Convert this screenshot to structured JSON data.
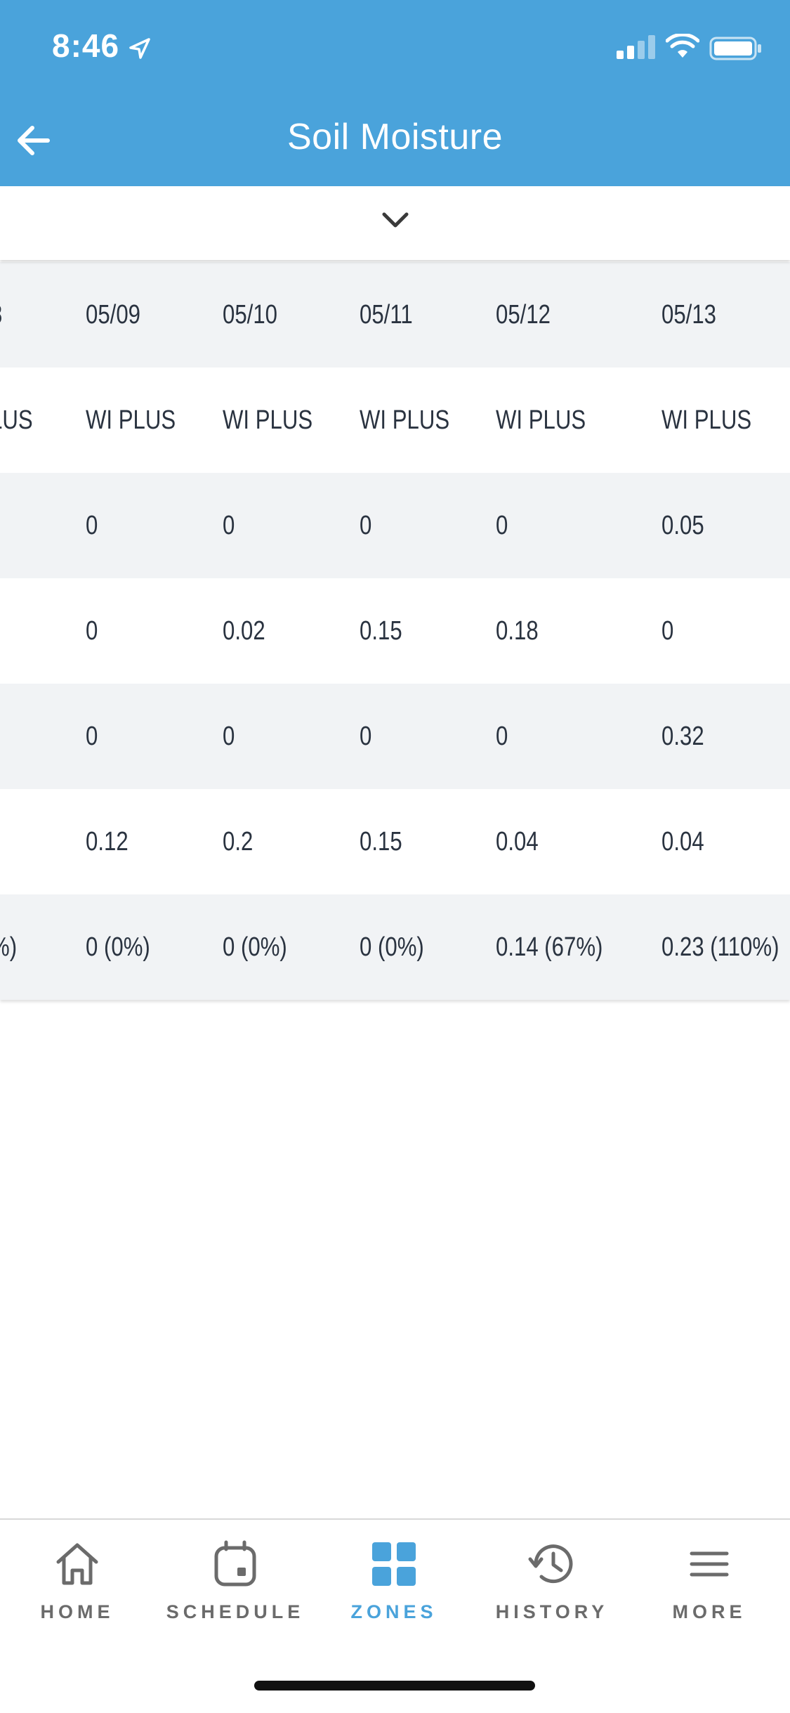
{
  "status_bar": {
    "time": "8:46"
  },
  "header": {
    "title": "Soil Moisture"
  },
  "table": {
    "rows": [
      [
        "8",
        "05/09",
        "05/10",
        "05/11",
        "05/12",
        "05/13"
      ],
      [
        "LUS",
        "WI PLUS",
        "WI PLUS",
        "WI PLUS",
        "WI PLUS",
        "WI PLUS"
      ],
      [
        "",
        "0",
        "0",
        "0",
        "0",
        "0.05"
      ],
      [
        "",
        "0",
        "0.02",
        "0.15",
        "0.18",
        "0"
      ],
      [
        "",
        "0",
        "0",
        "0",
        "0",
        "0.32"
      ],
      [
        "",
        "0.12",
        "0.2",
        "0.15",
        "0.04",
        "0.04"
      ],
      [
        "%)",
        "0 (0%)",
        "0 (0%)",
        "0 (0%)",
        "0.14 (67%)",
        "0.23 (110%)"
      ]
    ]
  },
  "nav": {
    "home": "HOME",
    "schedule": "SCHEDULE",
    "zones": "ZONES",
    "history": "HISTORY",
    "more": "MORE"
  },
  "colors": {
    "accent": "#4aa3db",
    "row_gray": "#f1f3f5",
    "text": "#2a3340",
    "nav_inactive": "#6b6b6b"
  },
  "icons": [
    "back-arrow-icon",
    "chevron-down-icon",
    "home-icon",
    "calendar-icon",
    "grid-icon",
    "history-icon",
    "menu-icon"
  ]
}
